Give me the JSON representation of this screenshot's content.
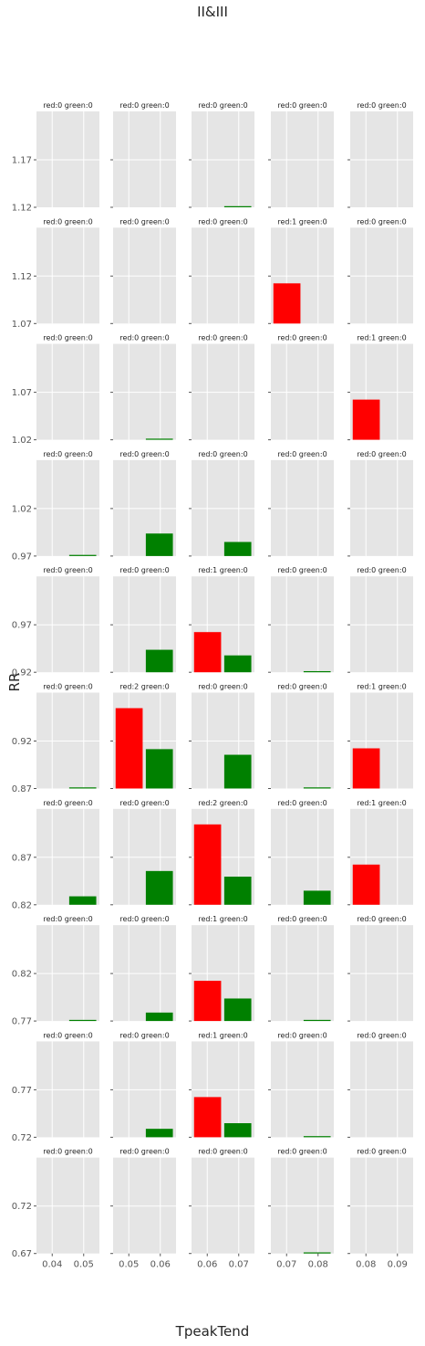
{
  "title": "II&III",
  "xlabel": "TpeakTend",
  "ylabel": "RR",
  "colors": {
    "red": "#ff0000",
    "green": "#008000",
    "panel_bg": "#e5e5e5",
    "grid": "#ffffff",
    "tick_text": "#555555"
  },
  "chart_data": {
    "type": "bar",
    "layout": "small-multiples 10 rows x 5 columns",
    "grid": true,
    "col_xticks": [
      [
        "0.04",
        "0.05"
      ],
      [
        "0.05",
        "0.06"
      ],
      [
        "0.06",
        "0.07"
      ],
      [
        "0.07",
        "0.08"
      ],
      [
        "0.08",
        "0.09"
      ]
    ],
    "row_yticks": [
      [
        "1.12",
        "1.17"
      ],
      [
        "1.07",
        "1.12"
      ],
      [
        "1.02",
        "1.07"
      ],
      [
        "0.97",
        "1.02"
      ],
      [
        "0.92",
        "0.97"
      ],
      [
        "0.87",
        "0.92"
      ],
      [
        "0.82",
        "0.87"
      ],
      [
        "0.77",
        "0.82"
      ],
      [
        "0.72",
        "0.77"
      ],
      [
        "0.67",
        "0.72"
      ]
    ],
    "panels": [
      [
        {
          "title": "red:0 green:0",
          "red": 0,
          "green": 0
        },
        {
          "title": "red:0 green:0",
          "red": 0,
          "green": 0
        },
        {
          "title": "red:0 green:0",
          "red": 0,
          "green": 0.02
        },
        {
          "title": "red:0 green:0",
          "red": 0,
          "green": 0
        },
        {
          "title": "red:0 green:0",
          "red": 0,
          "green": 0
        }
      ],
      [
        {
          "title": "red:0 green:0",
          "red": 0,
          "green": 0
        },
        {
          "title": "red:0 green:0",
          "red": 0,
          "green": 0
        },
        {
          "title": "red:0 green:0",
          "red": 0,
          "green": 0
        },
        {
          "title": "red:1 green:0",
          "red": 1,
          "green": 0
        },
        {
          "title": "red:0 green:0",
          "red": 0,
          "green": 0
        }
      ],
      [
        {
          "title": "red:0 green:0",
          "red": 0,
          "green": 0
        },
        {
          "title": "red:0 green:0",
          "red": 0,
          "green": 0.02
        },
        {
          "title": "red:0 green:0",
          "red": 0,
          "green": 0
        },
        {
          "title": "red:0 green:0",
          "red": 0,
          "green": 0
        },
        {
          "title": "red:1 green:0",
          "red": 1,
          "green": 0
        }
      ],
      [
        {
          "title": "red:0 green:0",
          "red": 0,
          "green": 0.02
        },
        {
          "title": "red:0 green:0",
          "red": 0,
          "green": 0.4
        },
        {
          "title": "red:0 green:0",
          "red": 0,
          "green": 0.25
        },
        {
          "title": "red:0 green:0",
          "red": 0,
          "green": 0
        },
        {
          "title": "red:0 green:0",
          "red": 0,
          "green": 0
        }
      ],
      [
        {
          "title": "red:0 green:0",
          "red": 0,
          "green": 0
        },
        {
          "title": "red:0 green:0",
          "red": 0,
          "green": 0.4
        },
        {
          "title": "red:1 green:0",
          "red": 1,
          "green": 0.3
        },
        {
          "title": "red:0 green:0",
          "red": 0,
          "green": 0.02
        },
        {
          "title": "red:0 green:0",
          "red": 0,
          "green": 0
        }
      ],
      [
        {
          "title": "red:0 green:0",
          "red": 0,
          "green": 0.02
        },
        {
          "title": "red:2 green:0",
          "red": 2,
          "green": 0.7
        },
        {
          "title": "red:0 green:0",
          "red": 0,
          "green": 0.6
        },
        {
          "title": "red:0 green:0",
          "red": 0,
          "green": 0.02
        },
        {
          "title": "red:1 green:0",
          "red": 1,
          "green": 0
        }
      ],
      [
        {
          "title": "red:0 green:0",
          "red": 0,
          "green": 0.15
        },
        {
          "title": "red:0 green:0",
          "red": 0,
          "green": 0.6
        },
        {
          "title": "red:2 green:0",
          "red": 2,
          "green": 0.5
        },
        {
          "title": "red:0 green:0",
          "red": 0,
          "green": 0.25
        },
        {
          "title": "red:1 green:0",
          "red": 1,
          "green": 0
        }
      ],
      [
        {
          "title": "red:0 green:0",
          "red": 0,
          "green": 0.02
        },
        {
          "title": "red:0 green:0",
          "red": 0,
          "green": 0.15
        },
        {
          "title": "red:1 green:0",
          "red": 1,
          "green": 0.4
        },
        {
          "title": "red:0 green:0",
          "red": 0,
          "green": 0.02
        },
        {
          "title": "red:0 green:0",
          "red": 0,
          "green": 0
        }
      ],
      [
        {
          "title": "red:0 green:0",
          "red": 0,
          "green": 0
        },
        {
          "title": "red:0 green:0",
          "red": 0,
          "green": 0.15
        },
        {
          "title": "red:1 green:0",
          "red": 1,
          "green": 0.25
        },
        {
          "title": "red:0 green:0",
          "red": 0,
          "green": 0.02
        },
        {
          "title": "red:0 green:0",
          "red": 0,
          "green": 0
        }
      ],
      [
        {
          "title": "red:0 green:0",
          "red": 0,
          "green": 0
        },
        {
          "title": "red:0 green:0",
          "red": 0,
          "green": 0
        },
        {
          "title": "red:0 green:0",
          "red": 0,
          "green": 0
        },
        {
          "title": "red:0 green:0",
          "red": 0,
          "green": 0.02
        },
        {
          "title": "red:0 green:0",
          "red": 0,
          "green": 0
        }
      ]
    ]
  }
}
